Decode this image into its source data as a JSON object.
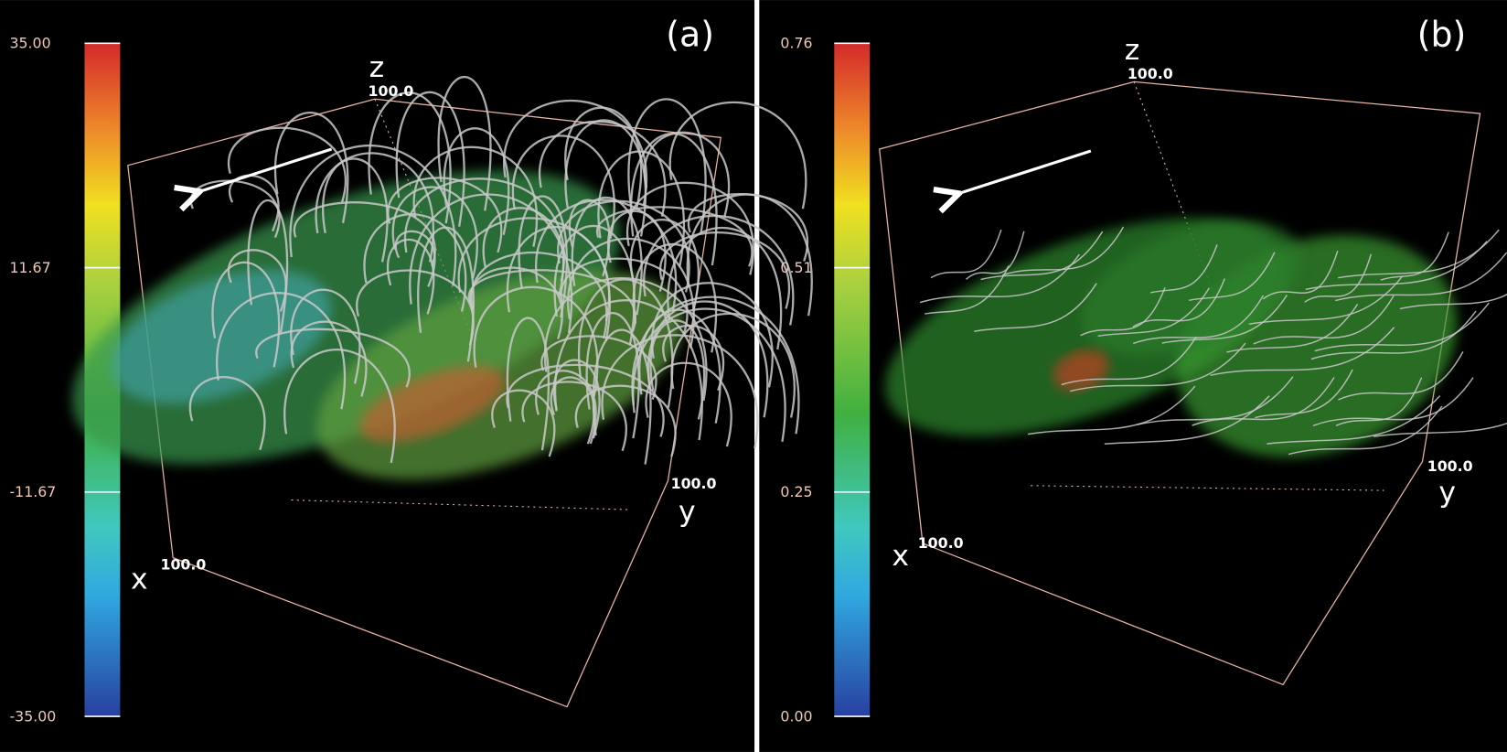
{
  "panels": [
    {
      "label": "(a)",
      "colorbar_ticks": [
        "35.00",
        "11.67",
        "-11.67",
        "-35.00"
      ],
      "axes": {
        "z": "z",
        "z_max": "100.0",
        "y": "y",
        "y_max": "100.0",
        "x": "x",
        "x_max": "100.0"
      }
    },
    {
      "label": "(b)",
      "colorbar_ticks": [
        "0.76",
        "0.51",
        "0.25",
        "0.00"
      ],
      "axes": {
        "z": "z",
        "z_max": "100.0",
        "y": "y",
        "y_max": "100.0",
        "x": "x",
        "x_max": "100.0"
      }
    }
  ]
}
